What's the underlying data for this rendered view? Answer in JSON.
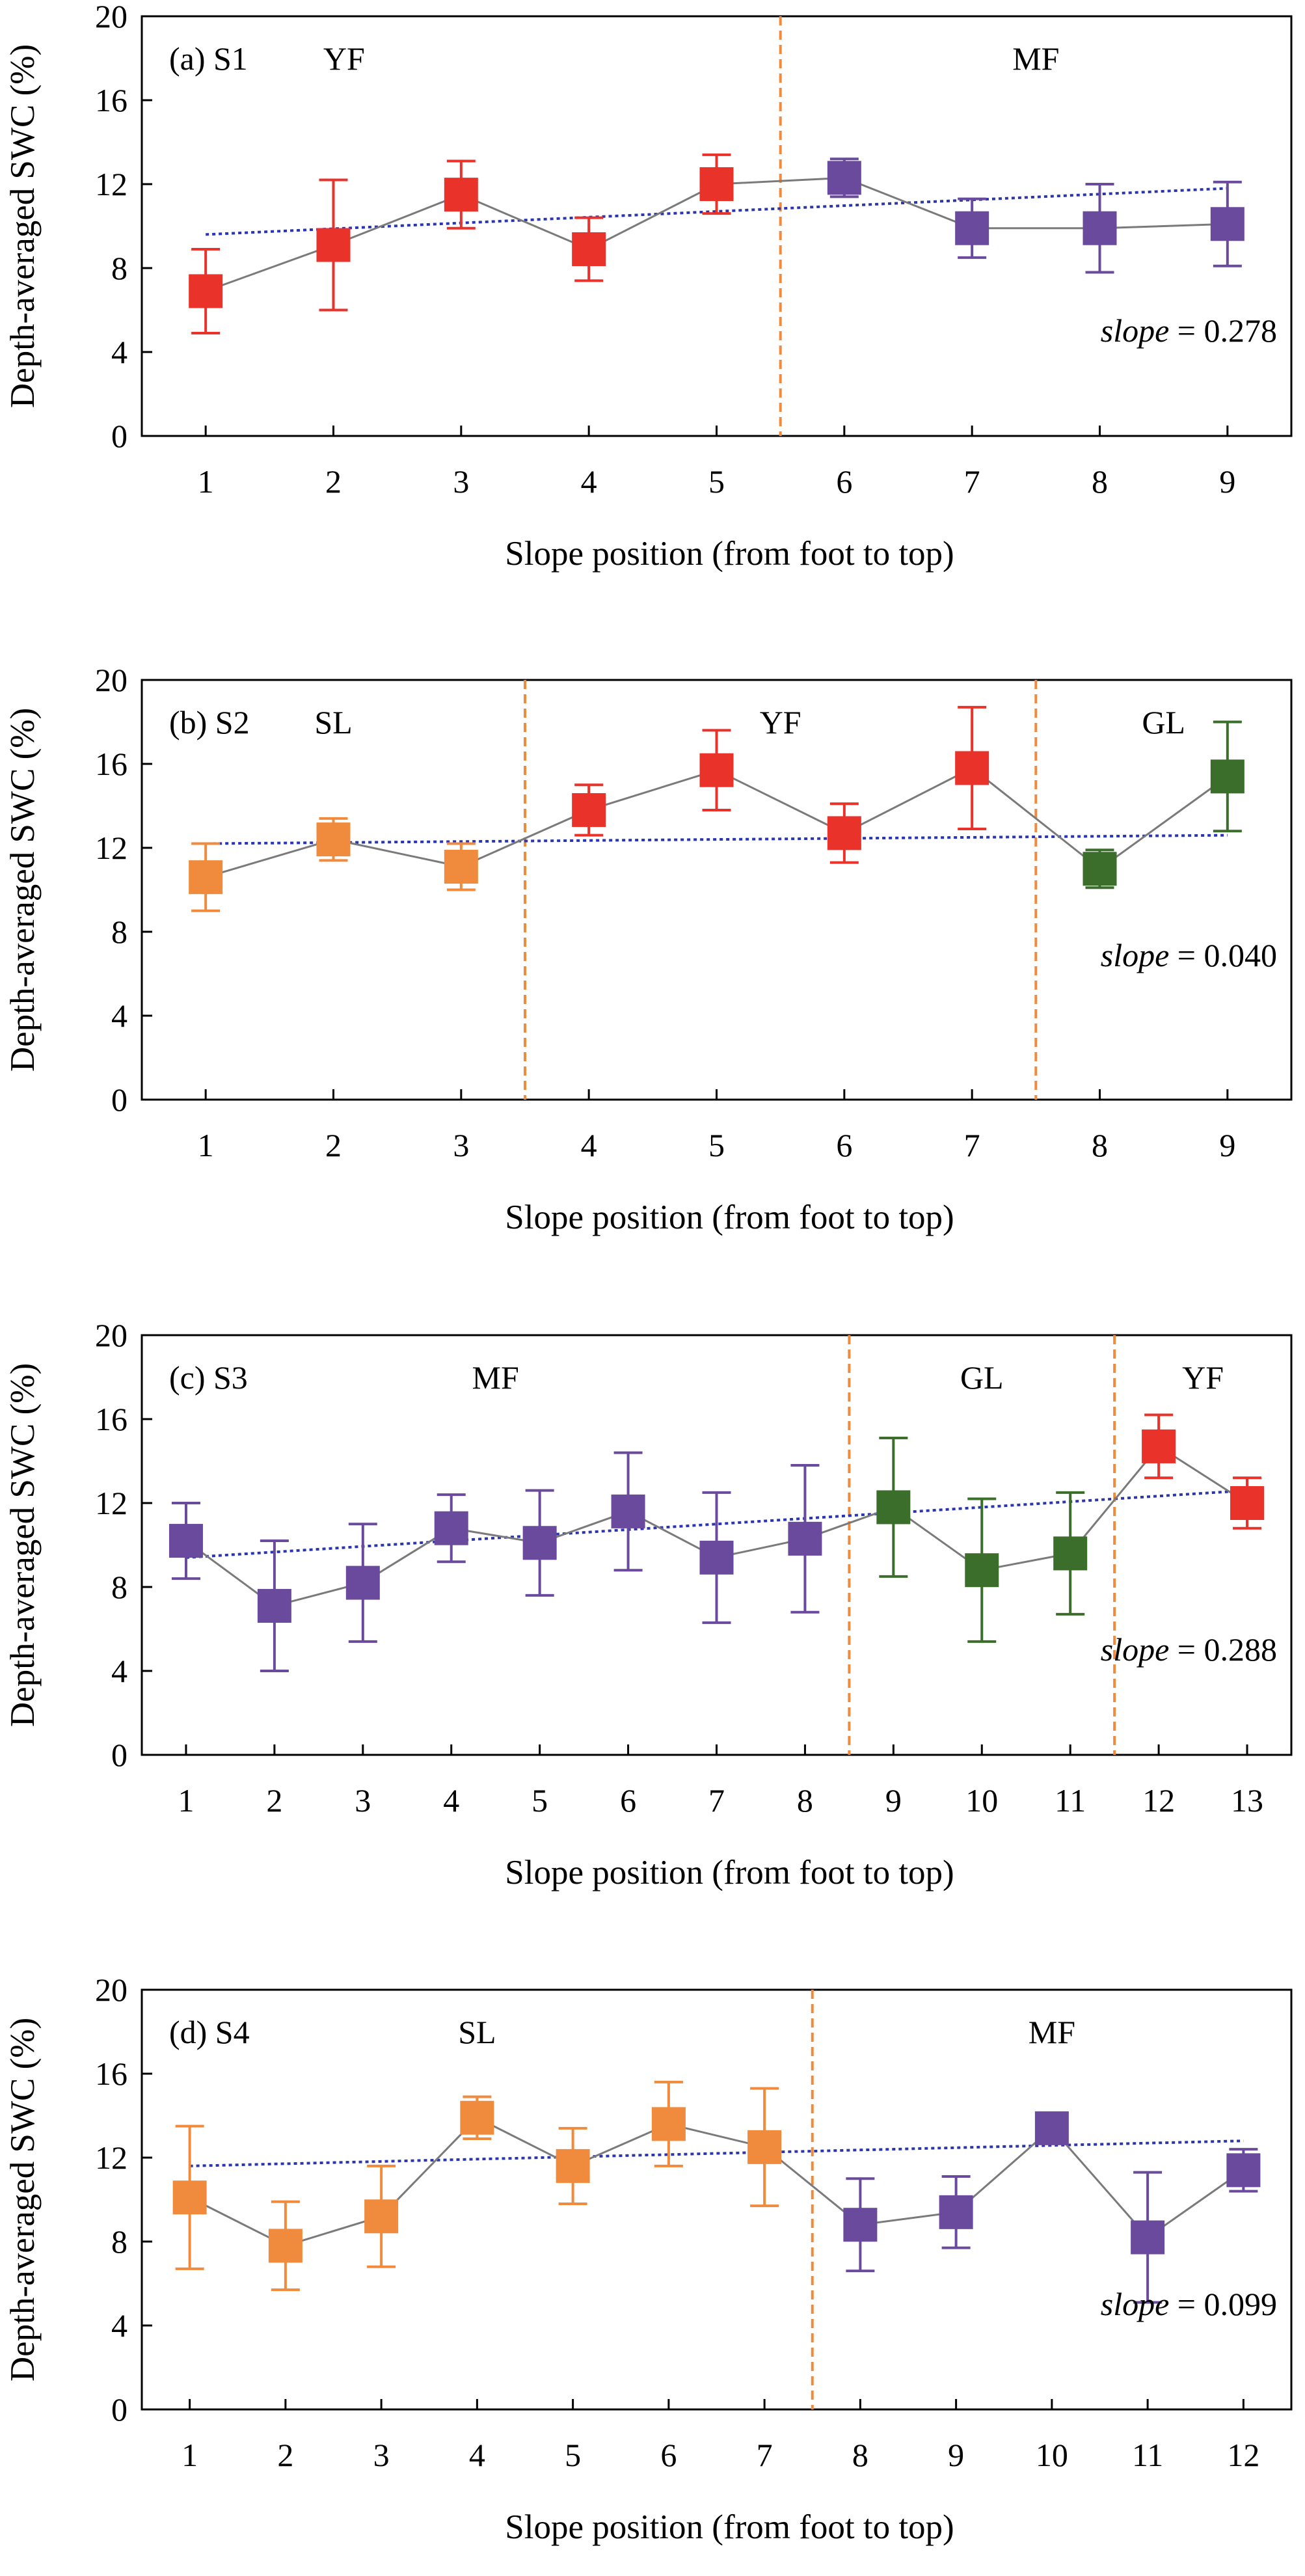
{
  "colors": {
    "YF": "#e8322a",
    "MF": "#6a4a9c",
    "SL": "#f08a3c",
    "GL": "#3a6e2a",
    "connector": "#7a7a7a",
    "trend": "#2a35b0",
    "divider": "#f08a3c"
  },
  "chart_data": [
    {
      "type": "scatter",
      "panel_label": "(a) S1",
      "xlabel": "Slope position (from foot to top)",
      "ylabel": "Depth-averaged SWC (%)",
      "ylim": [
        0,
        20
      ],
      "yticks": [
        "0",
        "4",
        "8",
        "12",
        "16",
        "20"
      ],
      "x": [
        1,
        2,
        3,
        4,
        5,
        6,
        7,
        8,
        9
      ],
      "xticks": [
        "1",
        "2",
        "3",
        "4",
        "5",
        "6",
        "7",
        "8",
        "9"
      ],
      "values": [
        6.9,
        9.1,
        11.5,
        8.9,
        12.0,
        12.3,
        9.9,
        9.9,
        10.1
      ],
      "errors": [
        2.0,
        3.1,
        1.6,
        1.5,
        1.4,
        0.9,
        1.4,
        2.1,
        2.0
      ],
      "landuse": [
        "YF",
        "YF",
        "YF",
        "YF",
        "YF",
        "MF",
        "MF",
        "MF",
        "MF"
      ],
      "zones": [
        {
          "label": "YF",
          "from": 0.5,
          "to": 5.5
        },
        {
          "label": "MF",
          "from": 5.5,
          "to": 9.5
        }
      ],
      "dividers": [
        5.5
      ],
      "trend": {
        "slope_label": "slope",
        "slope_value": "0.278",
        "start": 9.6,
        "end": 11.8
      }
    },
    {
      "type": "scatter",
      "panel_label": "(b) S2",
      "xlabel": "Slope position (from foot to top)",
      "ylabel": "Depth-averaged SWC (%)",
      "ylim": [
        0,
        20
      ],
      "yticks": [
        "0",
        "4",
        "8",
        "12",
        "16",
        "20"
      ],
      "x": [
        1,
        2,
        3,
        4,
        5,
        6,
        7,
        8,
        9
      ],
      "xticks": [
        "1",
        "2",
        "3",
        "4",
        "5",
        "6",
        "7",
        "8",
        "9"
      ],
      "values": [
        10.6,
        12.4,
        11.1,
        13.8,
        15.7,
        12.7,
        15.8,
        11.0,
        15.4
      ],
      "errors": [
        1.6,
        1.0,
        1.1,
        1.2,
        1.9,
        1.4,
        2.9,
        0.9,
        2.6
      ],
      "landuse": [
        "SL",
        "SL",
        "SL",
        "YF",
        "YF",
        "YF",
        "YF",
        "GL",
        "GL"
      ],
      "zones": [
        {
          "label": "SL",
          "from": 0.5,
          "to": 3.5
        },
        {
          "label": "YF",
          "from": 3.5,
          "to": 7.5
        },
        {
          "label": "GL",
          "from": 7.5,
          "to": 9.5
        }
      ],
      "dividers": [
        3.5,
        7.5
      ],
      "trend": {
        "slope_label": "slope",
        "slope_value": "0.040",
        "start": 12.2,
        "end": 12.6
      }
    },
    {
      "type": "scatter",
      "panel_label": "(c) S3",
      "xlabel": "Slope position (from foot to top)",
      "ylabel": "Depth-averaged SWC (%)",
      "ylim": [
        0,
        20
      ],
      "yticks": [
        "0",
        "4",
        "8",
        "12",
        "16",
        "20"
      ],
      "x": [
        1,
        2,
        3,
        4,
        5,
        6,
        7,
        8,
        9,
        10,
        11,
        12,
        13
      ],
      "xticks": [
        "1",
        "2",
        "3",
        "4",
        "5",
        "6",
        "7",
        "8",
        "9",
        "10",
        "11",
        "12",
        "13"
      ],
      "values": [
        10.2,
        7.1,
        8.2,
        10.8,
        10.1,
        11.6,
        9.4,
        10.3,
        11.8,
        8.8,
        9.6,
        14.7,
        12.0
      ],
      "errors": [
        1.8,
        3.1,
        2.8,
        1.6,
        2.5,
        2.8,
        3.1,
        3.5,
        3.3,
        3.4,
        2.9,
        1.5,
        1.2
      ],
      "landuse": [
        "MF",
        "MF",
        "MF",
        "MF",
        "MF",
        "MF",
        "MF",
        "MF",
        "GL",
        "GL",
        "GL",
        "YF",
        "YF"
      ],
      "zones": [
        {
          "label": "MF",
          "from": 0.5,
          "to": 8.5
        },
        {
          "label": "GL",
          "from": 8.5,
          "to": 11.5
        },
        {
          "label": "YF",
          "from": 11.5,
          "to": 13.5
        }
      ],
      "dividers": [
        8.5,
        11.5
      ],
      "trend": {
        "slope_label": "slope",
        "slope_value": "0.288",
        "start": 9.4,
        "end": 12.6
      }
    },
    {
      "type": "scatter",
      "panel_label": "(d) S4",
      "xlabel": "Slope position (from foot to top)",
      "ylabel": "Depth-averaged SWC (%)",
      "ylim": [
        0,
        20
      ],
      "yticks": [
        "0",
        "4",
        "8",
        "12",
        "16",
        "20"
      ],
      "x": [
        1,
        2,
        3,
        4,
        5,
        6,
        7,
        8,
        9,
        10,
        11,
        12
      ],
      "xticks": [
        "1",
        "2",
        "3",
        "4",
        "5",
        "6",
        "7",
        "8",
        "9",
        "10",
        "11",
        "12"
      ],
      "values": [
        10.1,
        7.8,
        9.2,
        13.9,
        11.6,
        13.6,
        12.5,
        8.8,
        9.4,
        13.4,
        8.2,
        11.4
      ],
      "errors": [
        3.4,
        2.1,
        2.4,
        1.0,
        1.8,
        2.0,
        2.8,
        2.2,
        1.7,
        0.6,
        3.1,
        1.0
      ],
      "landuse": [
        "SL",
        "SL",
        "SL",
        "SL",
        "SL",
        "SL",
        "SL",
        "MF",
        "MF",
        "MF",
        "MF",
        "MF"
      ],
      "zones": [
        {
          "label": "SL",
          "from": 0.5,
          "to": 7.5
        },
        {
          "label": "MF",
          "from": 7.5,
          "to": 12.5
        }
      ],
      "dividers": [
        7.5
      ],
      "trend": {
        "slope_label": "slope",
        "slope_value": "0.099",
        "start": 11.6,
        "end": 12.8
      }
    }
  ]
}
